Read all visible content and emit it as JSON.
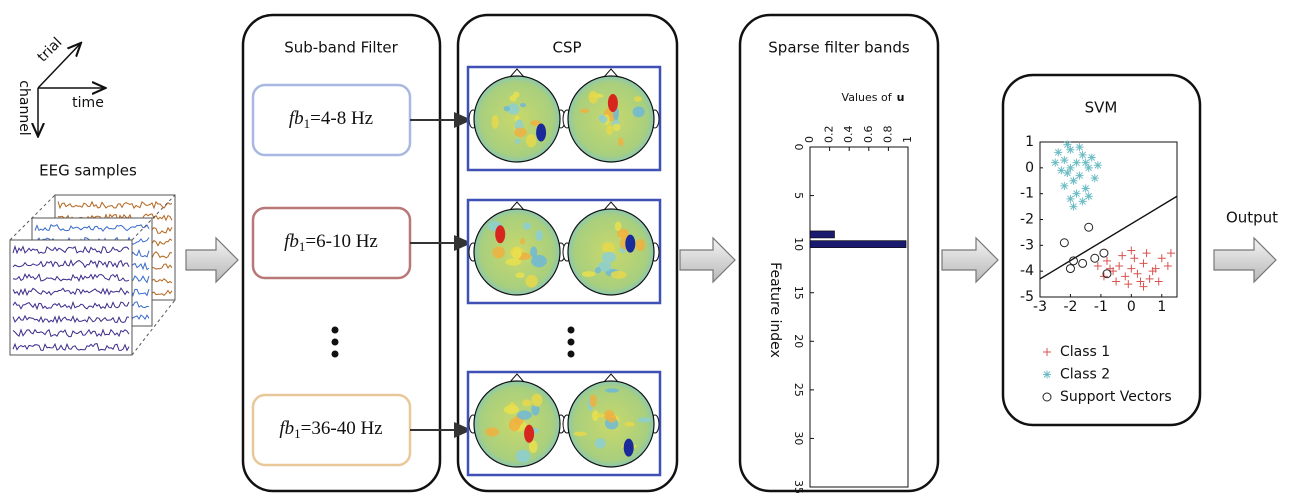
{
  "axes_icon": {
    "trial": "trial",
    "channel": "channel",
    "time": "time"
  },
  "input": {
    "label": "EEG samples"
  },
  "subband": {
    "title": "Sub-band Filter",
    "filters": [
      {
        "name": "fb",
        "sub": "1",
        "range": "=4-8 Hz"
      },
      {
        "name": "fb",
        "sub": "1",
        "range": "=6-10 Hz"
      },
      {
        "name": "fb",
        "sub": "1",
        "range": "=36-40 Hz"
      }
    ]
  },
  "csp": {
    "title": "CSP"
  },
  "sparse": {
    "title": "Sparse filter bands",
    "chart_data": {
      "type": "bar",
      "orientation": "horizontal",
      "title": "Values of",
      "title_symbol": "u",
      "y_label": "Feature index",
      "x": [
        9,
        10
      ],
      "values": [
        0.25,
        0.98
      ],
      "color": "#1a1a6e",
      "xlim": [
        0,
        1
      ],
      "xticks": [
        0,
        0.2,
        0.4,
        0.6,
        0.8,
        1
      ],
      "ylim": [
        0,
        35
      ],
      "yticks": [
        0,
        5,
        10,
        15,
        20,
        25,
        30,
        35
      ]
    }
  },
  "svm": {
    "title": "SVM",
    "chart_data": {
      "type": "scatter",
      "xlim": [
        -3,
        1.5
      ],
      "xticks": [
        -3,
        -2,
        -1,
        0,
        1
      ],
      "ylim": [
        -5,
        1
      ],
      "yticks": [
        1,
        0,
        -1,
        -2,
        -3,
        -4,
        -5
      ],
      "series": [
        {
          "name": "Class 1",
          "marker": "plus",
          "color": "#d9534f",
          "x": [
            -0.8,
            -0.6,
            -0.4,
            -0.2,
            0,
            0.2,
            0.4,
            0.6,
            0.8,
            1.0,
            1.2,
            -0.5,
            -0.1,
            0.3,
            0.7,
            -0.3,
            0.1,
            0.5,
            -0.9,
            1.3,
            -0.7,
            0.9,
            -1.1,
            0.0,
            0.4
          ],
          "y": [
            -3.6,
            -4.0,
            -3.8,
            -4.2,
            -3.9,
            -4.1,
            -3.7,
            -4.3,
            -3.9,
            -3.5,
            -3.8,
            -4.4,
            -4.5,
            -4.4,
            -4.0,
            -3.4,
            -3.5,
            -3.3,
            -4.2,
            -3.3,
            -3.9,
            -4.4,
            -3.8,
            -3.2,
            -4.6
          ]
        },
        {
          "name": "Class 2",
          "marker": "star",
          "color": "#6cbcc4",
          "x": [
            -2.4,
            -2.2,
            -2.0,
            -1.8,
            -1.6,
            -1.4,
            -2.1,
            -1.9,
            -1.7,
            -1.5,
            -2.3,
            -2.0,
            -1.3,
            -1.2,
            -2.5,
            -1.8,
            -1.6,
            -2.1,
            -1.4,
            -1.9,
            -2.2,
            -1.1,
            -1.7,
            -2.0,
            -1.5
          ],
          "y": [
            0.6,
            0.3,
            0.7,
            0.2,
            0.5,
            0.0,
            -0.2,
            -0.5,
            -0.3,
            -0.8,
            -0.1,
            0.0,
            0.4,
            -0.4,
            0.2,
            -1.0,
            -1.3,
            0.9,
            -1.1,
            -1.5,
            -0.7,
            0.1,
            0.8,
            -1.2,
            0.2
          ]
        },
        {
          "name": "Support Vectors",
          "marker": "circle",
          "color": "#222222",
          "x": [
            -2.2,
            -1.4,
            -1.9,
            -1.6,
            -1.2,
            -0.9,
            -2.0,
            -0.8
          ],
          "y": [
            -2.9,
            -2.3,
            -3.6,
            -3.7,
            -3.5,
            -3.3,
            -3.9,
            -4.1
          ]
        }
      ],
      "boundary": {
        "x": [
          -3,
          1.5
        ],
        "y": [
          -4.3,
          -1.1
        ],
        "color": "#111111"
      }
    }
  },
  "output": {
    "label": "Output"
  }
}
